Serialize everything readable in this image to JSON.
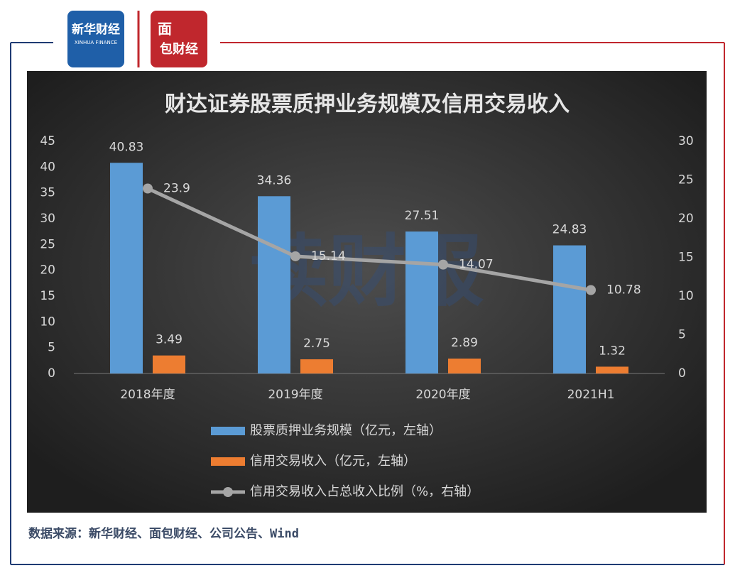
{
  "brand": {
    "xinhua": "新华财经",
    "xinhua_en": "XINHUA FINANCE",
    "mianbao_top": "面",
    "mianbao_bottom": "包财经"
  },
  "watermark": "读财报",
  "source": "数据来源：新华财经、面包财经、公司公告、Wind",
  "chart_data": {
    "type": "bar",
    "title": "财达证券股票质押业务规模及信用交易收入",
    "categories": [
      "2018年度",
      "2019年度",
      "2020年度",
      "2021H1"
    ],
    "series": [
      {
        "name": "股票质押业务规模（亿元，左轴）",
        "color": "#5b9bd5",
        "values": [
          40.83,
          34.36,
          27.51,
          24.83
        ]
      },
      {
        "name": "信用交易收入（亿元，左轴）",
        "color": "#ed7d31",
        "values": [
          3.49,
          2.75,
          2.89,
          1.32
        ]
      },
      {
        "name": "信用交易收入占总收入比例（%，右轴）",
        "color": "#a5a5a5",
        "type": "line",
        "axis": "y2",
        "values": [
          23.9,
          15.14,
          14.07,
          10.78
        ]
      }
    ],
    "ylim": [
      0,
      45
    ],
    "yticks": [
      0,
      5,
      10,
      15,
      20,
      25,
      30,
      35,
      40,
      45
    ],
    "y2lim": [
      0,
      30
    ],
    "y2ticks": [
      0,
      5,
      10,
      15,
      20,
      25,
      30
    ],
    "grid": false,
    "legend": "bottom"
  }
}
